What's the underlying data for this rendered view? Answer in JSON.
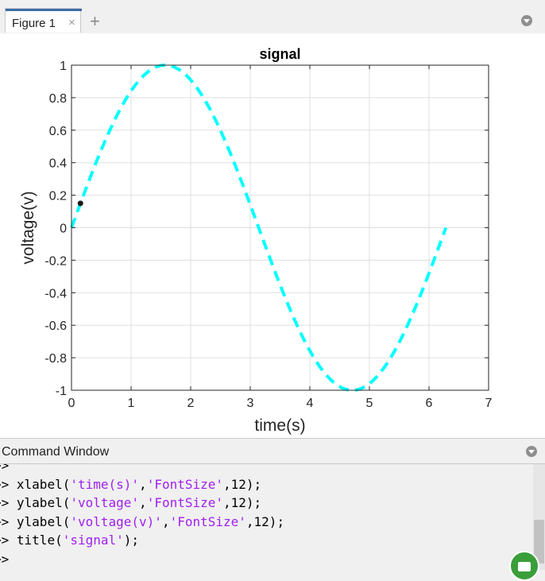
{
  "figure_tab": {
    "label": "Figure 1",
    "close_glyph": "×",
    "add_glyph": "+"
  },
  "icons": {
    "panel_menu": "chevron-down-circle-icon",
    "assistant": "assistant-robot-icon"
  },
  "colors": {
    "line": "#00ffff",
    "axes": "#262626",
    "grid": "#dfdfdf",
    "marker": "#1a1a1a"
  },
  "chart_data": {
    "type": "line",
    "title": "signal",
    "xlabel": "time(s)",
    "ylabel": "voltage(v)",
    "xlim": [
      0,
      7
    ],
    "ylim": [
      -1,
      1
    ],
    "xticks": [
      "0",
      "1",
      "2",
      "3",
      "4",
      "5",
      "6",
      "7"
    ],
    "yticks": [
      "1",
      "0.8",
      "0.6",
      "0.4",
      "0.2",
      "0",
      "-0.2",
      "-0.4",
      "-0.6",
      "-0.8",
      "-1"
    ],
    "grid": true,
    "series": [
      {
        "function": "sin",
        "x_range": [
          0,
          6.2832
        ],
        "style": "dashed",
        "color": "#00ffff"
      }
    ],
    "marker_point": {
      "x": 0.15,
      "y": 0.15
    }
  },
  "command_window": {
    "title": "Command Window",
    "lines": [
      {
        "prompt": ">>",
        "parts": []
      },
      {
        "prompt": ">>",
        "parts": [
          [
            "xlabel(",
            false
          ],
          [
            "'time(s)'",
            true
          ],
          [
            ",",
            false
          ],
          [
            "'FontSize'",
            true
          ],
          [
            ",12);",
            false
          ]
        ]
      },
      {
        "prompt": ">>",
        "parts": [
          [
            "ylabel(",
            false
          ],
          [
            "'voltage'",
            true
          ],
          [
            ",",
            false
          ],
          [
            "'FontSize'",
            true
          ],
          [
            ",12);",
            false
          ]
        ]
      },
      {
        "prompt": ">>",
        "parts": [
          [
            "ylabel(",
            false
          ],
          [
            "'voltage(v)'",
            true
          ],
          [
            ",",
            false
          ],
          [
            "'FontSize'",
            true
          ],
          [
            ",12);",
            false
          ]
        ]
      },
      {
        "prompt": ">>",
        "parts": [
          [
            "title(",
            false
          ],
          [
            "'signal'",
            true
          ],
          [
            ");",
            false
          ]
        ]
      },
      {
        "prompt": ">>",
        "parts": []
      }
    ]
  }
}
